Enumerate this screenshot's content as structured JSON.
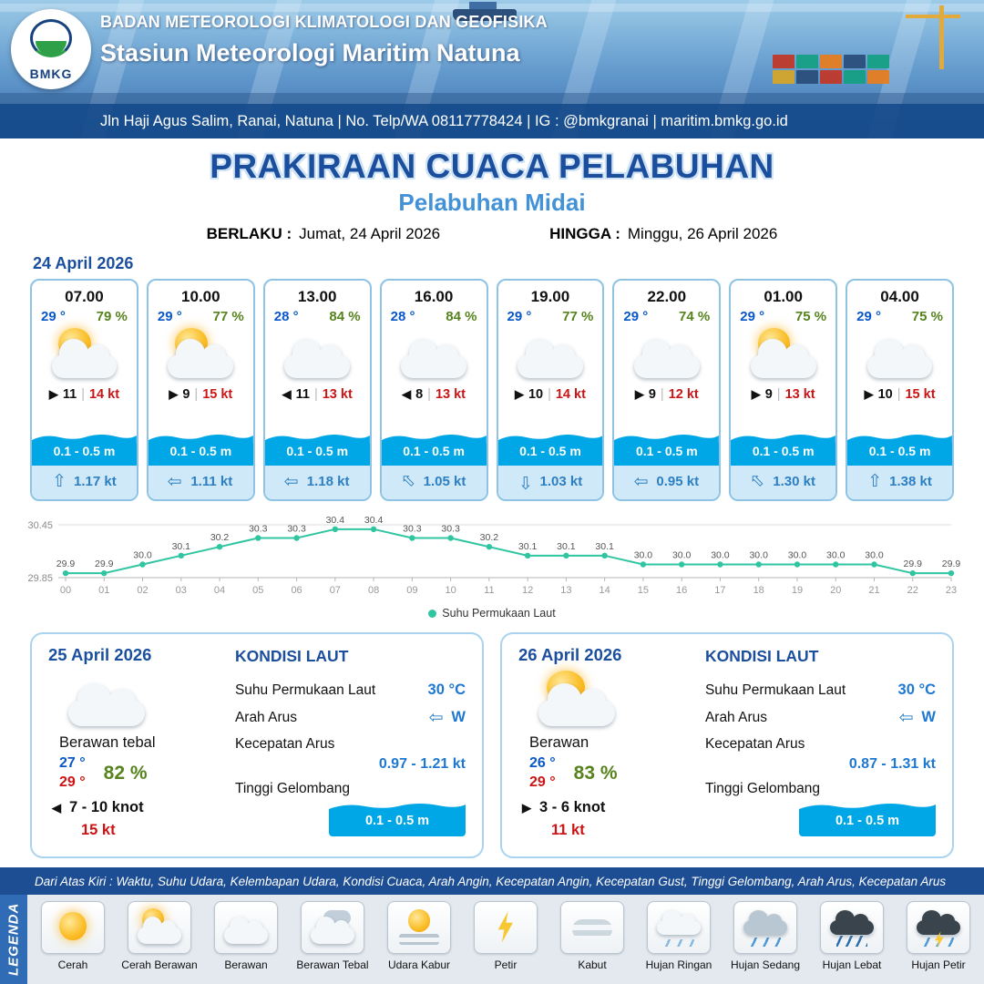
{
  "header": {
    "agency": "BADAN METEOROLOGI KLIMATOLOGI DAN GEOFISIKA",
    "station": "Stasiun Meteorologi Maritim Natuna",
    "contact": "Jln Haji Agus Salim, Ranai, Natuna  | No. Telp/WA 08117778424 | IG : @bmkgranai | maritim.bmkg.go.id",
    "logo_label": "BMKG"
  },
  "title": {
    "main": "PRAKIRAAN CUACA PELABUHAN",
    "subtitle": "Pelabuhan Midai",
    "valid_from": "Jumat, 24 April 2026",
    "valid_to": "Minggu, 26 April 2026"
  },
  "labels": {
    "berlaku": "BERLAKU :",
    "hingga": "HINGGA :",
    "kondisi_laut": "KONDISI LAUT",
    "suhu_permukaan_laut": "Suhu Permukaan Laut",
    "arah_arus": "Arah Arus",
    "kecepatan_arus": "Kecepatan Arus",
    "tinggi_gelombang": "Tinggi Gelombang"
  },
  "forecast_date": "24 April 2026",
  "forecast_cards": [
    {
      "time": "07.00",
      "temp": "29 °",
      "humidity": "79 %",
      "icon": "cerah-berawan",
      "wind_dir": "E",
      "wind_speed": "11",
      "wind_gust": "14 kt",
      "wave_height": "0.1 - 0.5 m",
      "current_dir": "N",
      "current_speed": "1.17 kt"
    },
    {
      "time": "10.00",
      "temp": "29 °",
      "humidity": "77 %",
      "icon": "cerah-berawan",
      "wind_dir": "E",
      "wind_speed": "9",
      "wind_gust": "15 kt",
      "wave_height": "0.1 - 0.5 m",
      "current_dir": "W",
      "current_speed": "1.11 kt"
    },
    {
      "time": "13.00",
      "temp": "28 °",
      "humidity": "84 %",
      "icon": "berawan",
      "wind_dir": "W",
      "wind_speed": "11",
      "wind_gust": "13 kt",
      "wave_height": "0.1 - 0.5 m",
      "current_dir": "W",
      "current_speed": "1.18 kt"
    },
    {
      "time": "16.00",
      "temp": "28 °",
      "humidity": "84 %",
      "icon": "berawan",
      "wind_dir": "W",
      "wind_speed": "8",
      "wind_gust": "13 kt",
      "wave_height": "0.1 - 0.5 m",
      "current_dir": "NW",
      "current_speed": "1.05 kt"
    },
    {
      "time": "19.00",
      "temp": "29 °",
      "humidity": "77 %",
      "icon": "berawan",
      "wind_dir": "E",
      "wind_speed": "10",
      "wind_gust": "14 kt",
      "wave_height": "0.1 - 0.5 m",
      "current_dir": "S",
      "current_speed": "1.03 kt"
    },
    {
      "time": "22.00",
      "temp": "29 °",
      "humidity": "74 %",
      "icon": "berawan",
      "wind_dir": "E",
      "wind_speed": "9",
      "wind_gust": "12 kt",
      "wave_height": "0.1 - 0.5 m",
      "current_dir": "W",
      "current_speed": "0.95 kt"
    },
    {
      "time": "01.00",
      "temp": "29 °",
      "humidity": "75 %",
      "icon": "cerah-berawan",
      "wind_dir": "E",
      "wind_speed": "9",
      "wind_gust": "13 kt",
      "wave_height": "0.1 - 0.5 m",
      "current_dir": "NW",
      "current_speed": "1.30 kt"
    },
    {
      "time": "04.00",
      "temp": "29 °",
      "humidity": "75 %",
      "icon": "berawan",
      "wind_dir": "E",
      "wind_speed": "10",
      "wind_gust": "15 kt",
      "wave_height": "0.1 - 0.5 m",
      "current_dir": "N",
      "current_speed": "1.38 kt"
    }
  ],
  "chart_data": {
    "type": "line",
    "series_name": "Suhu Permukaan Laut",
    "x": [
      "00",
      "01",
      "02",
      "03",
      "04",
      "05",
      "06",
      "07",
      "08",
      "09",
      "10",
      "11",
      "12",
      "13",
      "14",
      "15",
      "16",
      "17",
      "18",
      "19",
      "20",
      "21",
      "22",
      "23"
    ],
    "values": [
      29.9,
      29.9,
      30.0,
      30.1,
      30.2,
      30.3,
      30.3,
      30.4,
      30.4,
      30.3,
      30.3,
      30.2,
      30.1,
      30.1,
      30.1,
      30.0,
      30.0,
      30.0,
      30.0,
      30.0,
      30.0,
      30.0,
      29.9,
      29.9
    ],
    "ylim": [
      29.85,
      30.45
    ],
    "line_color": "#2fc5a0",
    "grid": true,
    "legend_position": "bottom"
  },
  "outlook": [
    {
      "date": "25 April 2026",
      "icon": "berawan",
      "condition": "Berawan tebal",
      "temp_min": "27 °",
      "temp_max": "29 °",
      "humidity": "82 %",
      "wind_dir": "W",
      "wind_range": "7 - 10 knot",
      "wind_gust": "15 kt",
      "sst": "30 °C",
      "current_dir": "W",
      "current_dir_label": "W",
      "current_range": "0.97 - 1.21 kt",
      "wave_height": "0.1 - 0.5 m"
    },
    {
      "date": "26 April 2026",
      "icon": "cerah-berawan",
      "condition": "Berawan",
      "temp_min": "26 °",
      "temp_max": "29 °",
      "humidity": "83 %",
      "wind_dir": "E",
      "wind_range": "3 - 6 knot",
      "wind_gust": "11 kt",
      "sst": "30 °C",
      "current_dir": "W",
      "current_dir_label": "W",
      "current_range": "0.87 - 1.31 kt",
      "wave_height": "0.1 - 0.5 m"
    }
  ],
  "legend": {
    "title": "LEGENDA",
    "note": "Dari Atas Kiri : Waktu, Suhu Udara, Kelembapan Udara, Kondisi Cuaca, Arah Angin, Kecepatan Angin, Kecepatan Gust, Tinggi Gelombang, Arah Arus, Kecepatan Arus",
    "items": [
      {
        "label": "Cerah",
        "icon": "cerah"
      },
      {
        "label": "Cerah Berawan",
        "icon": "cerah-berawan"
      },
      {
        "label": "Berawan",
        "icon": "berawan"
      },
      {
        "label": "Berawan Tebal",
        "icon": "berawan-tebal"
      },
      {
        "label": "Udara Kabur",
        "icon": "udara-kabur"
      },
      {
        "label": "Petir",
        "icon": "petir"
      },
      {
        "label": "Kabut",
        "icon": "kabut"
      },
      {
        "label": "Hujan Ringan",
        "icon": "hujan-ringan"
      },
      {
        "label": "Hujan Sedang",
        "icon": "hujan-sedang"
      },
      {
        "label": "Hujan Lebat",
        "icon": "hujan-lebat"
      },
      {
        "label": "Hujan Petir",
        "icon": "hujan-petir"
      }
    ]
  },
  "colors": {
    "title_blue": "#1b4f9e",
    "subtitle_blue": "#4392d7",
    "temp_blue": "#0a58c8",
    "humidity_green": "#56831d",
    "gust_red": "#cc1414",
    "wave_blue": "#00a7e6",
    "current_blue": "#2d7fc1",
    "chart_line": "#2fc5a0"
  }
}
